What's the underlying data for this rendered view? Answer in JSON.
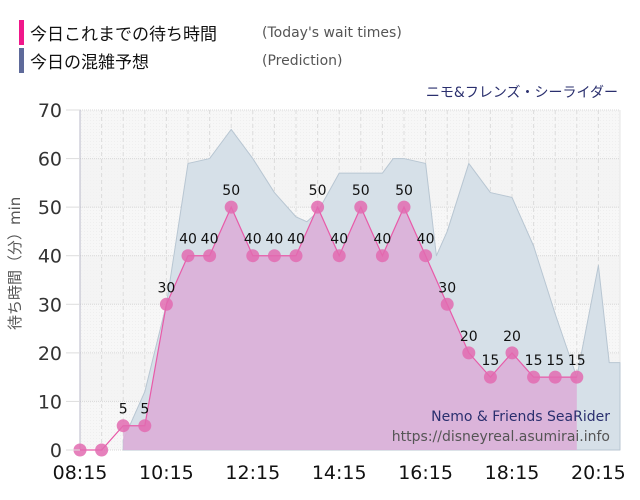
{
  "legend": {
    "items": [
      {
        "label_jp": "今日これまでの待ち時間",
        "label_en": "(Today's wait times)",
        "color": "#f0178a"
      },
      {
        "label_jp": "今日の混雑予想",
        "label_en": "(Prediction)",
        "color": "#5e6a9a"
      }
    ]
  },
  "attraction": {
    "name_jp": "ニモ&フレンズ・シーライダー",
    "name_en": "Nemo & Friends SeaRider"
  },
  "watermark": {
    "url": "https://disneyreal.asumirai.info"
  },
  "axis": {
    "ylabel": "待ち時間（分）min"
  },
  "colors": {
    "actual_line": "#e85aa8",
    "actual_fill": "#dbb0d8",
    "actual_dot": "#e26bb0",
    "prediction_fill": "#d6e0e8",
    "prediction_line": "#b8c6d2"
  },
  "chart_data": {
    "type": "area",
    "title": "ニモ&フレンズ・シーライダー",
    "xlabel": "",
    "ylabel": "待ち時間（分）min",
    "ylim": [
      0,
      70
    ],
    "yticks": [
      0,
      10,
      20,
      30,
      40,
      50,
      60,
      70
    ],
    "xticks": [
      "08:15",
      "10:15",
      "12:15",
      "14:15",
      "16:15",
      "18:15",
      "20:15"
    ],
    "grid": true,
    "legend_position": "top-left",
    "series": [
      {
        "name": "今日これまでの待ち時間 (Today's wait times)",
        "x": [
          "08:15",
          "08:45",
          "09:15",
          "09:45",
          "10:15",
          "10:45",
          "11:15",
          "11:45",
          "12:15",
          "12:45",
          "13:15",
          "13:45",
          "14:15",
          "14:45",
          "15:15",
          "15:45",
          "16:15",
          "16:45",
          "17:15",
          "17:45",
          "18:15",
          "18:45",
          "19:15",
          "19:45"
        ],
        "values": [
          0,
          0,
          5,
          5,
          30,
          40,
          40,
          50,
          40,
          40,
          40,
          50,
          40,
          50,
          40,
          50,
          40,
          30,
          20,
          15,
          20,
          15,
          15,
          15
        ]
      },
      {
        "name": "今日の混雑予想 (Prediction)",
        "x": [
          "09:15",
          "09:45",
          "10:15",
          "10:45",
          "11:15",
          "11:30",
          "11:45",
          "12:15",
          "12:45",
          "13:15",
          "13:30",
          "13:45",
          "14:15",
          "14:30",
          "15:15",
          "15:30",
          "15:45",
          "16:15",
          "16:30",
          "16:45",
          "17:15",
          "17:45",
          "18:15",
          "18:45",
          "19:15",
          "19:45",
          "20:15",
          "20:30"
        ],
        "values": [
          2,
          12,
          30,
          59,
          60,
          63,
          66,
          60,
          53,
          48,
          47,
          49,
          57,
          57,
          57,
          60,
          60,
          59,
          40,
          45,
          59,
          53,
          52,
          42,
          28,
          15,
          38,
          18
        ]
      }
    ]
  }
}
